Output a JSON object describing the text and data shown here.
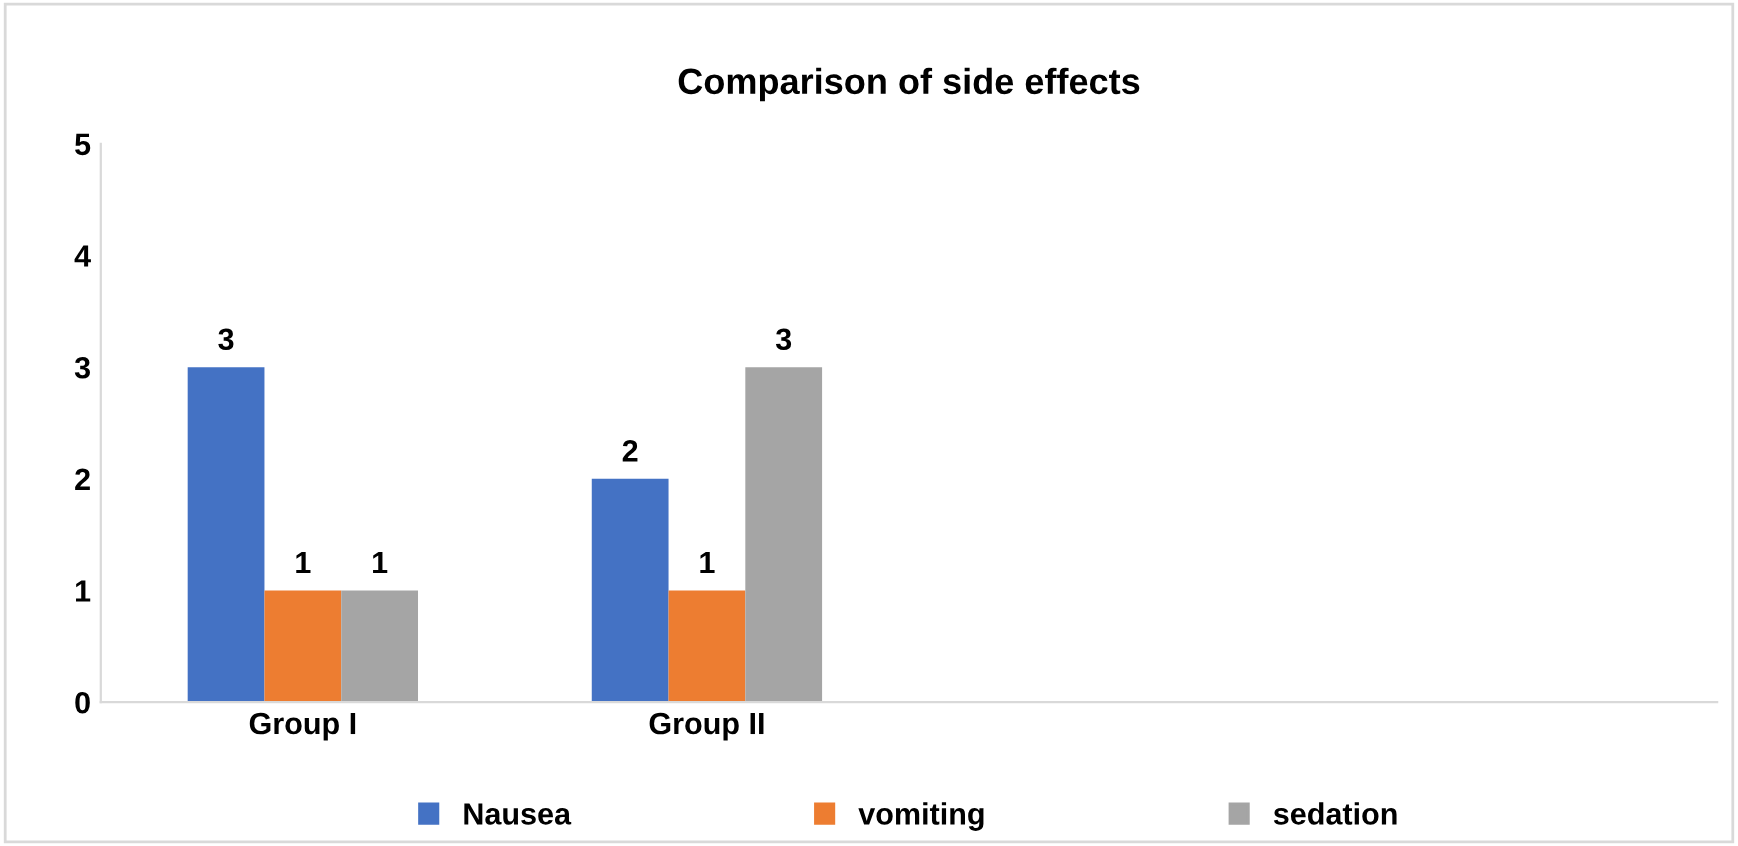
{
  "chart_data": {
    "type": "bar",
    "title": "Comparison of side effects",
    "categories": [
      "Group I",
      "Group II",
      null,
      null
    ],
    "series": [
      {
        "name": "Nausea",
        "color": "#4472c4",
        "values": [
          3,
          2,
          null,
          null
        ]
      },
      {
        "name": "vomiting",
        "color": "#ed7d31",
        "values": [
          1,
          1,
          null,
          null
        ]
      },
      {
        "name": "sedation",
        "color": "#a5a5a5",
        "values": [
          1,
          3,
          null,
          null
        ]
      }
    ],
    "ylim": [
      0,
      5
    ],
    "yticks": [
      0,
      1,
      2,
      3,
      4,
      5
    ],
    "grid": false,
    "legend": "bottom",
    "data_labels": true
  }
}
